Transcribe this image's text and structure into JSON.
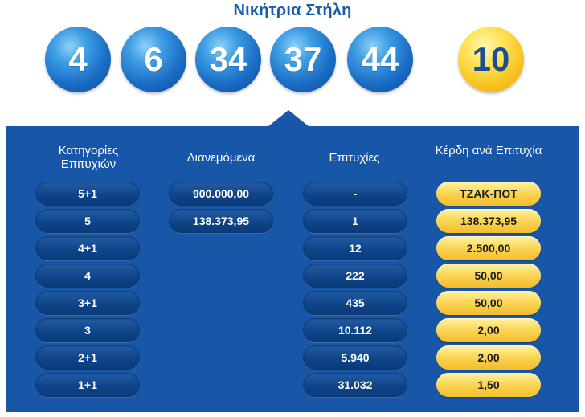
{
  "title": "Νικήτρια Στήλη",
  "numbers": [
    "4",
    "6",
    "34",
    "37",
    "44"
  ],
  "joker": "10",
  "colors": {
    "panel": "#1856a8",
    "ball_blue": "#1a6cc4",
    "joker_gold": "#f7c320"
  },
  "table": {
    "headers": [
      "Κατηγορίες Επιτυχιών",
      "Διανεμόμενα",
      "Επιτυχίες",
      "Κέρδη ανά Επιτυχία"
    ],
    "rows": [
      {
        "category": "5+1",
        "distributed": "900.000,00",
        "winners": "-",
        "prize": "ΤΖΑΚ-ΠΟΤ"
      },
      {
        "category": "5",
        "distributed": "138.373,95",
        "winners": "1",
        "prize": "138.373,95"
      },
      {
        "category": "4+1",
        "distributed": "",
        "winners": "12",
        "prize": "2.500,00"
      },
      {
        "category": "4",
        "distributed": "",
        "winners": "222",
        "prize": "50,00"
      },
      {
        "category": "3+1",
        "distributed": "",
        "winners": "435",
        "prize": "50,00"
      },
      {
        "category": "3",
        "distributed": "",
        "winners": "10.112",
        "prize": "2,00"
      },
      {
        "category": "2+1",
        "distributed": "",
        "winners": "5.940",
        "prize": "2,00"
      },
      {
        "category": "1+1",
        "distributed": "",
        "winners": "31.032",
        "prize": "1,50"
      }
    ]
  }
}
